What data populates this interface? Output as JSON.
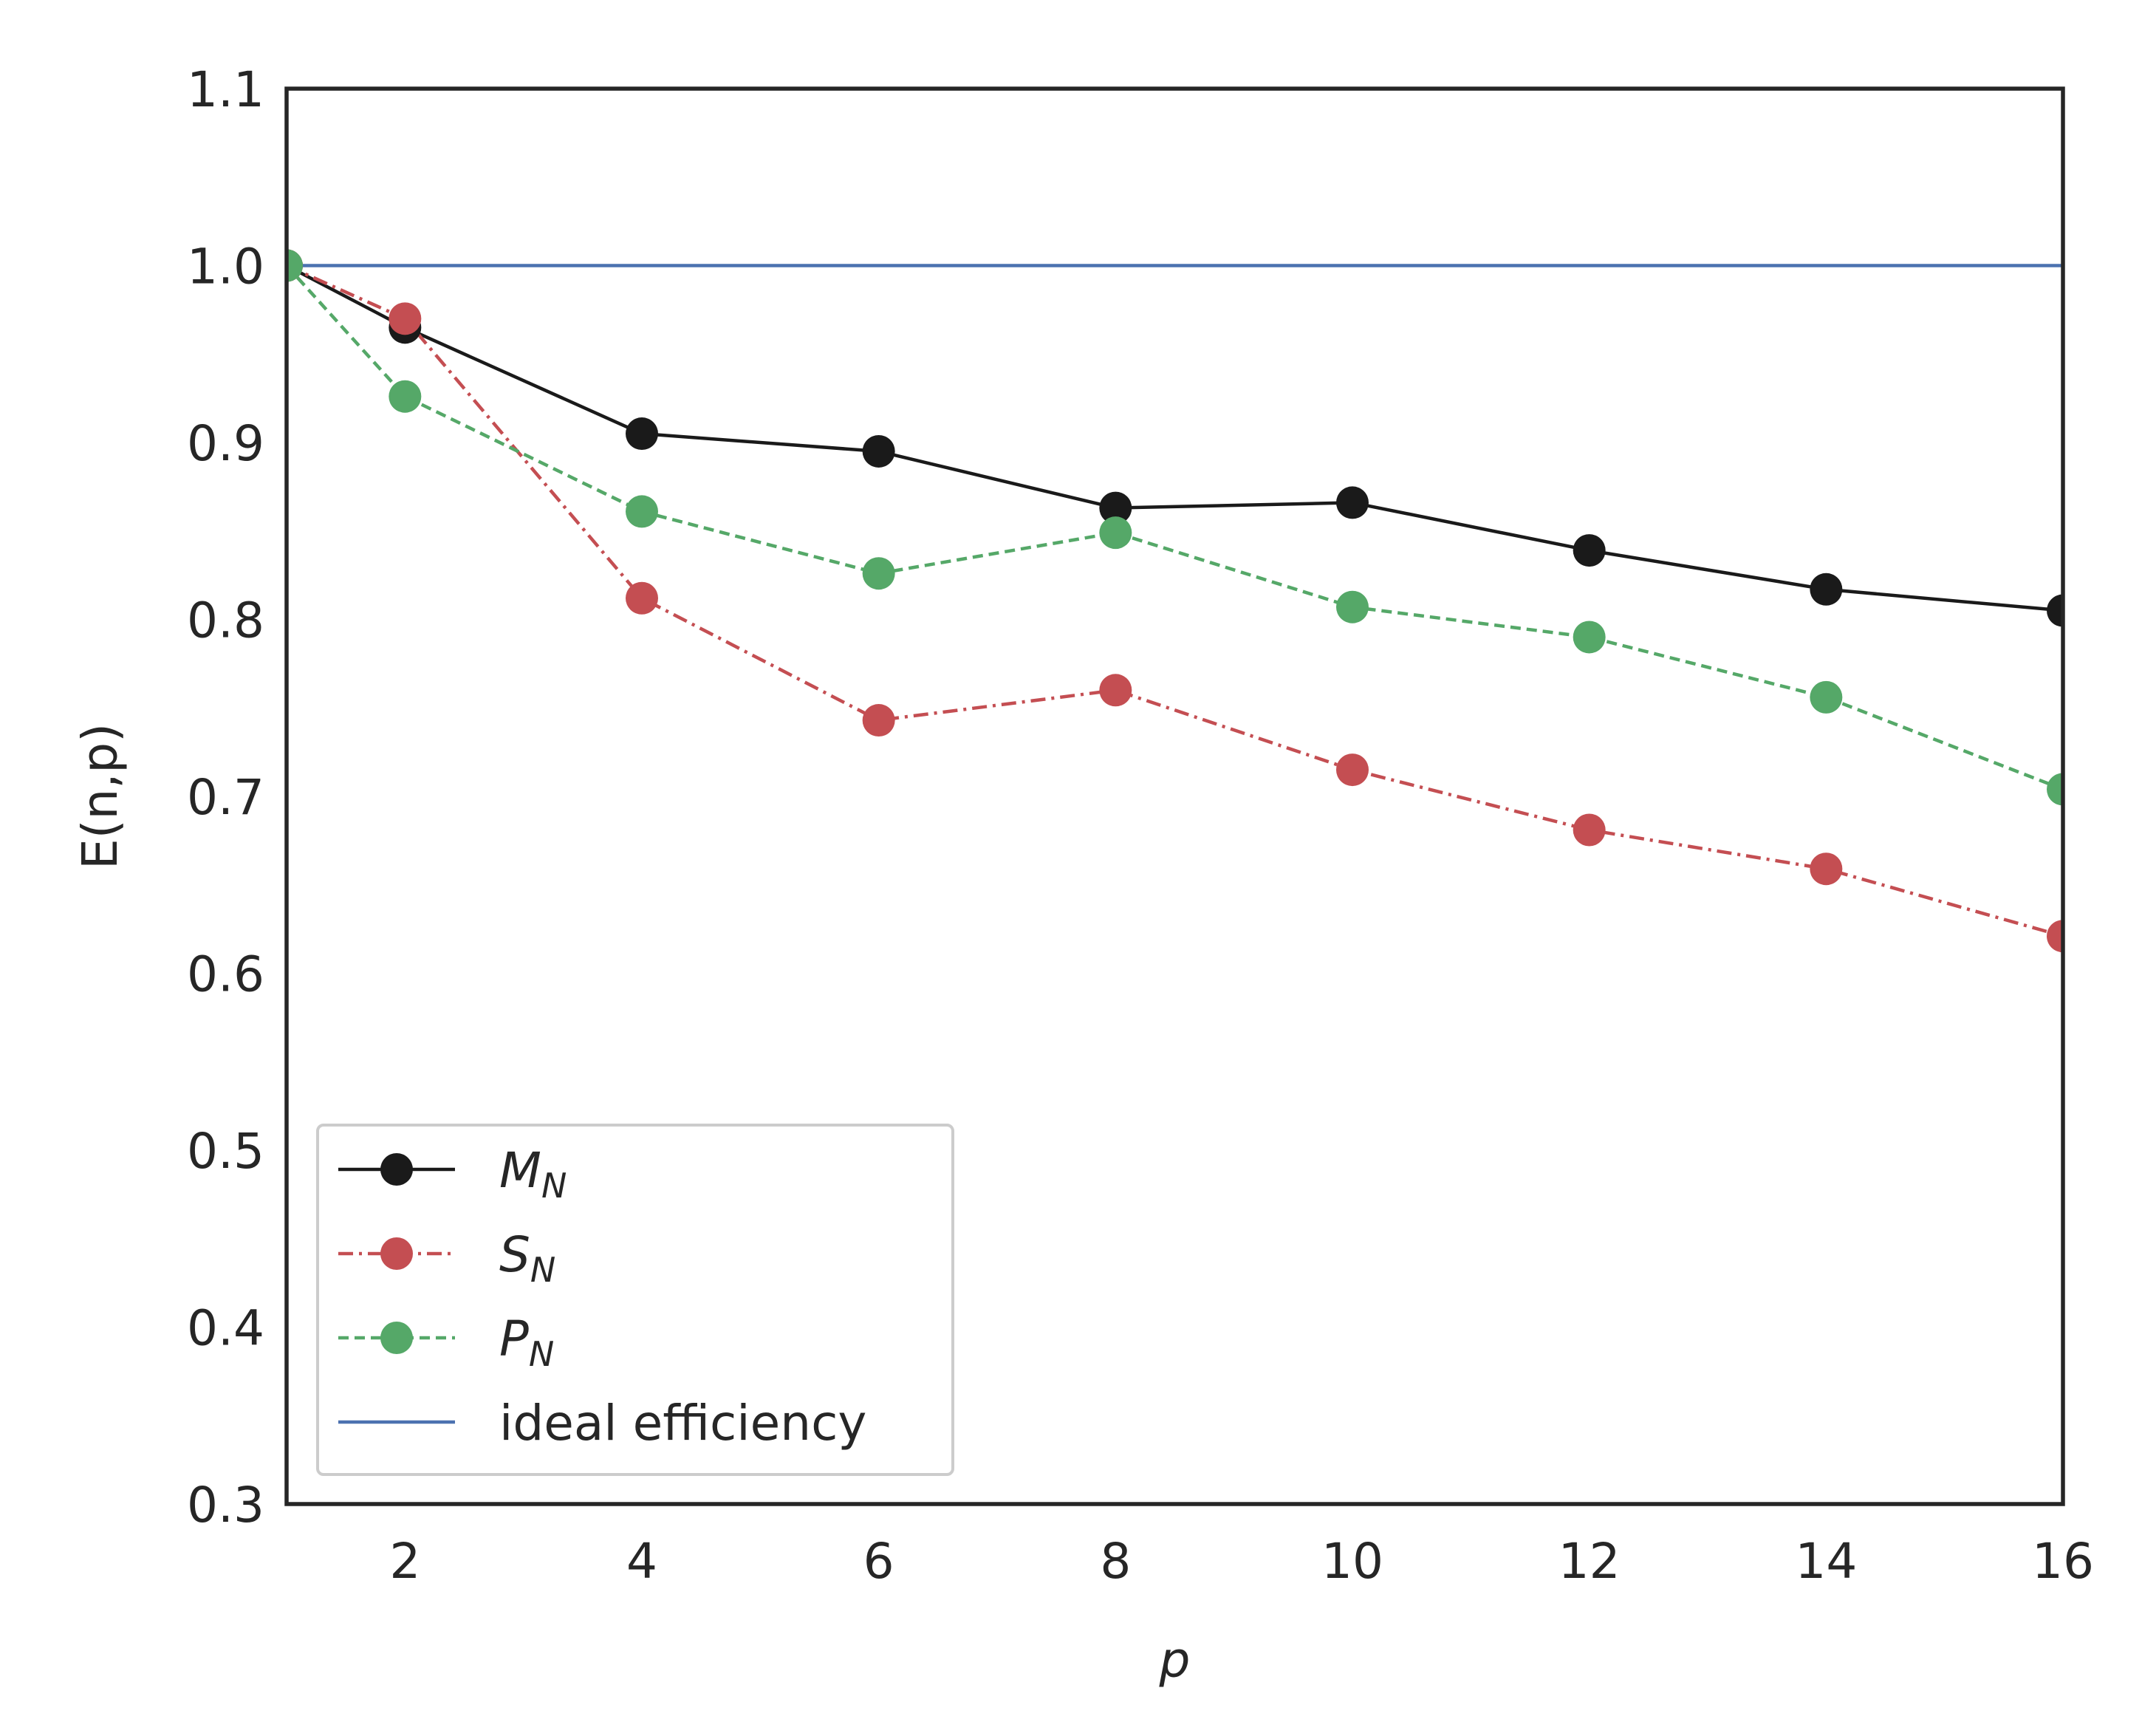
{
  "chart_data": {
    "type": "line",
    "title": "",
    "xlabel": "p",
    "ylabel": "E(n,p)",
    "xlim": [
      1,
      16
    ],
    "ylim": [
      0.3,
      1.1
    ],
    "xticks": [
      2,
      4,
      6,
      8,
      10,
      12,
      14,
      16
    ],
    "yticks": [
      0.3,
      0.4,
      0.5,
      0.6,
      0.7,
      0.8,
      0.9,
      1.0,
      1.1
    ],
    "x": [
      1,
      2,
      4,
      6,
      8,
      10,
      12,
      14,
      16
    ],
    "grid": false,
    "legend_position": "lower-left",
    "series": [
      {
        "name": "M",
        "subscript": "N",
        "color": "#1a1a1a",
        "linestyle": "solid",
        "marker": "circle",
        "values": [
          1.0,
          0.965,
          0.905,
          0.895,
          0.863,
          0.866,
          0.839,
          0.817,
          0.805
        ]
      },
      {
        "name": "S",
        "subscript": "N",
        "color": "#c44e52",
        "linestyle": "dashdot",
        "marker": "circle",
        "values": [
          1.0,
          0.97,
          0.812,
          0.743,
          0.76,
          0.715,
          0.681,
          0.659,
          0.621
        ]
      },
      {
        "name": "P",
        "subscript": "N",
        "color": "#55a868",
        "linestyle": "dashed",
        "marker": "circle",
        "values": [
          1.0,
          0.926,
          0.861,
          0.826,
          0.849,
          0.807,
          0.79,
          0.756,
          0.704
        ]
      }
    ],
    "reference_line": {
      "name": "ideal efficiency",
      "color": "#4c72b0",
      "y": 1.0
    }
  }
}
